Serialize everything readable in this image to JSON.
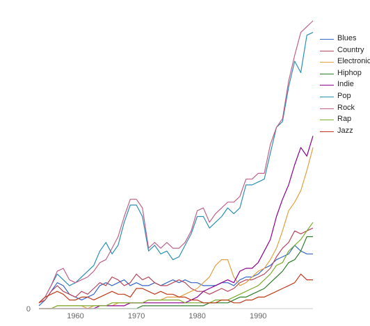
{
  "chart_data": {
    "type": "line",
    "title": "",
    "xlabel": "",
    "ylabel": "",
    "x_ticks": [
      "1960",
      "1970",
      "1980",
      "1990"
    ],
    "y_ticks": [
      "0"
    ],
    "xlim": [
      1954,
      1999
    ],
    "ylim": [
      0,
      100
    ],
    "grid": false,
    "legend_position": "top-right",
    "x": [
      1954,
      1955,
      1956,
      1957,
      1958,
      1959,
      1960,
      1961,
      1962,
      1963,
      1964,
      1965,
      1966,
      1967,
      1968,
      1969,
      1970,
      1971,
      1972,
      1973,
      1974,
      1975,
      1976,
      1977,
      1978,
      1979,
      1980,
      1981,
      1982,
      1983,
      1984,
      1985,
      1986,
      1987,
      1988,
      1989,
      1990,
      1991,
      1992,
      1993,
      1994,
      1995,
      1996,
      1997,
      1998,
      1999
    ],
    "series": [
      {
        "name": "Blues",
        "color": "#3366cc",
        "values": [
          1,
          3,
          6,
          9,
          8,
          5,
          4,
          3,
          4,
          5,
          8,
          9,
          8,
          9,
          10,
          8,
          9,
          8,
          8,
          9,
          8,
          9,
          10,
          9,
          10,
          9,
          9,
          8,
          8,
          8,
          9,
          9,
          8,
          10,
          11,
          11,
          12,
          14,
          15,
          17,
          18,
          19,
          22,
          20,
          19,
          19
        ]
      },
      {
        "name": "Country",
        "color": "#b5475d",
        "values": [
          2,
          3,
          6,
          8,
          6,
          5,
          4,
          6,
          5,
          7,
          9,
          8,
          11,
          10,
          8,
          9,
          12,
          10,
          11,
          9,
          8,
          8,
          9,
          10,
          9,
          7,
          6,
          6,
          5,
          6,
          7,
          6,
          7,
          9,
          10,
          10,
          11,
          12,
          14,
          18,
          21,
          23,
          27,
          26,
          27,
          28
        ]
      },
      {
        "name": "Electronic",
        "color": "#e0a040",
        "values": [
          0,
          0,
          0,
          1,
          1,
          1,
          1,
          1,
          0,
          1,
          1,
          1,
          1,
          2,
          2,
          2,
          2,
          2,
          3,
          3,
          3,
          4,
          4,
          4,
          5,
          6,
          7,
          9,
          11,
          15,
          17,
          17,
          11,
          8,
          9,
          11,
          13,
          14,
          17,
          21,
          27,
          34,
          37,
          41,
          48,
          56
        ]
      },
      {
        "name": "Hiphop",
        "color": "#2d7d2d",
        "values": [
          0,
          0,
          0,
          0,
          0,
          0,
          0,
          0,
          0,
          0,
          0,
          0,
          0,
          0,
          0,
          0,
          0,
          1,
          1,
          1,
          1,
          1,
          1,
          1,
          1,
          1,
          1,
          1,
          2,
          2,
          2,
          2,
          3,
          4,
          4,
          5,
          6,
          7,
          9,
          11,
          13,
          16,
          17,
          20,
          25,
          25
        ]
      },
      {
        "name": "Indie",
        "color": "#8b008b",
        "values": [
          0,
          0,
          0,
          0,
          0,
          0,
          0,
          0,
          0,
          0,
          1,
          1,
          1,
          1,
          1,
          2,
          2,
          2,
          2,
          2,
          2,
          2,
          2,
          2,
          2,
          3,
          4,
          6,
          7,
          8,
          9,
          10,
          9,
          13,
          14,
          14,
          16,
          20,
          24,
          32,
          38,
          43,
          50,
          56,
          53,
          60
        ]
      },
      {
        "name": "Pop",
        "color": "#2a8fb4",
        "values": [
          2,
          4,
          8,
          12,
          10,
          8,
          9,
          11,
          13,
          15,
          20,
          23,
          19,
          22,
          30,
          36,
          36,
          32,
          20,
          22,
          19,
          20,
          17,
          18,
          22,
          26,
          32,
          32,
          28,
          30,
          32,
          35,
          33,
          35,
          43,
          43,
          44,
          45,
          54,
          63,
          65,
          77,
          86,
          82,
          95,
          96
        ]
      },
      {
        "name": "Rock",
        "color": "#c0608a",
        "values": [
          2,
          4,
          8,
          13,
          14,
          10,
          9,
          10,
          11,
          13,
          16,
          17,
          21,
          25,
          32,
          38,
          38,
          35,
          21,
          23,
          21,
          23,
          21,
          21,
          23,
          27,
          34,
          35,
          30,
          33,
          35,
          37,
          37,
          39,
          45,
          45,
          47,
          47,
          57,
          63,
          66,
          79,
          88,
          96,
          98,
          100
        ]
      },
      {
        "name": "Rap",
        "color": "#7aab2c",
        "values": [
          0,
          0,
          0,
          1,
          1,
          1,
          1,
          1,
          1,
          1,
          1,
          1,
          2,
          2,
          2,
          2,
          2,
          2,
          3,
          3,
          3,
          3,
          3,
          3,
          2,
          2,
          2,
          2,
          2,
          3,
          3,
          3,
          4,
          5,
          6,
          7,
          8,
          10,
          12,
          15,
          16,
          20,
          22,
          24,
          27,
          30
        ]
      },
      {
        "name": "Jazz",
        "color": "#c03a1a",
        "values": [
          2,
          4,
          5,
          6,
          5,
          3,
          3,
          4,
          4,
          3,
          4,
          5,
          6,
          5,
          5,
          4,
          7,
          7,
          6,
          5,
          6,
          5,
          5,
          4,
          4,
          3,
          3,
          2,
          2,
          2,
          3,
          3,
          2,
          2,
          3,
          3,
          4,
          4,
          5,
          6,
          7,
          8,
          9,
          12,
          10,
          10
        ]
      }
    ]
  }
}
